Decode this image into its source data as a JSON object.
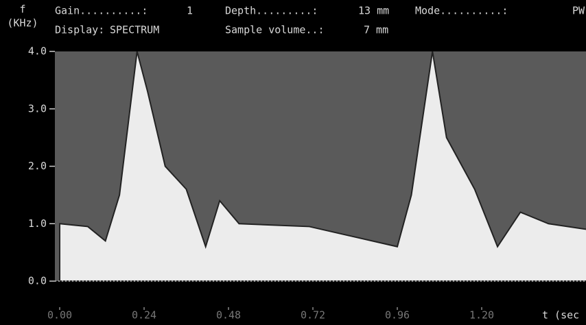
{
  "header": {
    "gain_label": "Gain..........:",
    "gain_value": "1",
    "depth_label": "Depth.........:",
    "depth_value": "13 mm",
    "mode_label": "Mode..........:",
    "mode_value": "PW",
    "display_label": "Display:",
    "display_value": "SPECTRUM",
    "sample_label": "Sample volume..:",
    "sample_value": "7 mm"
  },
  "chart_data": {
    "type": "area",
    "y_label": "f",
    "y_unit": "(KHz)",
    "x_label": "t (sec",
    "x": [
      0,
      0.08,
      0.13,
      0.17,
      0.22,
      0.25,
      0.3,
      0.36,
      0.415,
      0.455,
      0.51,
      0.71,
      0.96,
      1.0,
      1.06,
      1.1,
      1.18,
      1.245,
      1.31,
      1.39,
      1.5
    ],
    "series": [
      {
        "color": "#ececec",
        "values": [
          1.0,
          0.95,
          0.7,
          1.5,
          4.0,
          3.3,
          2.0,
          1.6,
          0.6,
          1.4,
          1.0,
          0.95,
          0.6,
          1.5,
          4.0,
          2.5,
          1.6,
          0.6,
          1.2,
          1.0,
          0.9
        ]
      }
    ],
    "xlim": [
      0,
      1.5
    ],
    "ylim": [
      0,
      4
    ],
    "xticks": [
      {
        "value": 0,
        "label": "0.00"
      },
      {
        "value": 0.24,
        "label": "0.24"
      },
      {
        "value": 0.48,
        "label": "0.48"
      },
      {
        "value": 0.72,
        "label": "0.72"
      },
      {
        "value": 0.96,
        "label": "0.96"
      },
      {
        "value": 1.2,
        "label": "1.20"
      }
    ],
    "yticks": [
      {
        "value": 0,
        "label": "0.0"
      },
      {
        "value": 1,
        "label": "1.0"
      },
      {
        "value": 2,
        "label": "2.0"
      },
      {
        "value": 3,
        "label": "3.0"
      },
      {
        "value": 4,
        "label": "4.0"
      }
    ]
  }
}
